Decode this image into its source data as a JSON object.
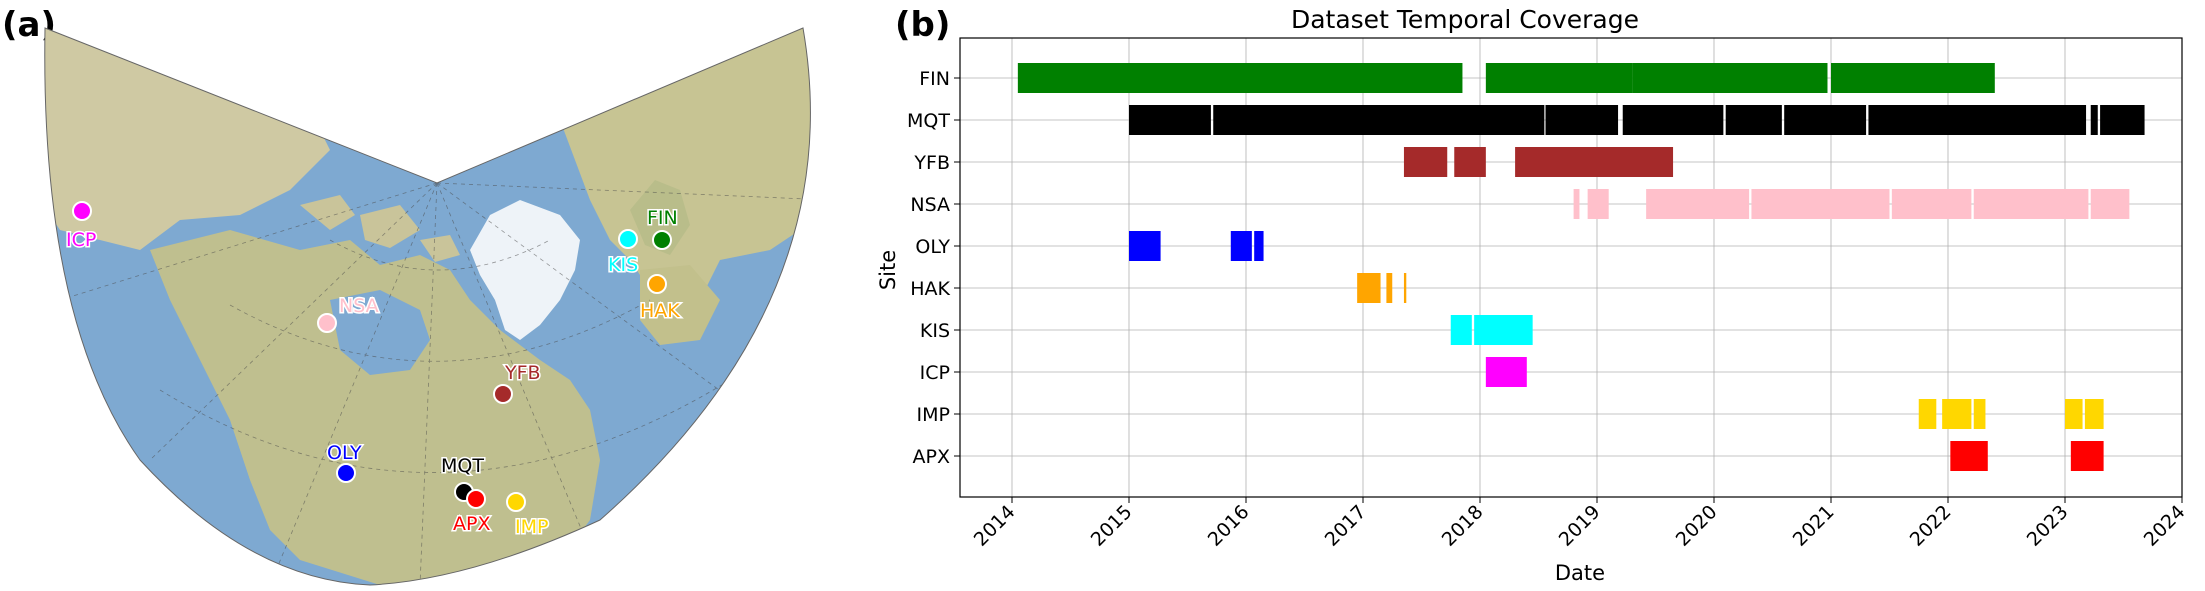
{
  "panel_a_label": "(a)",
  "panel_b_label": "(b)",
  "map": {
    "ocean_color": "#7ea9d1",
    "land_color": "#c9c49a",
    "ice_color": "#eef3f8",
    "sites": [
      {
        "name": "ICP",
        "color": "#ff00ff"
      },
      {
        "name": "NSA",
        "color": "#ffc0cb"
      },
      {
        "name": "YFB",
        "color": "#a52a2a"
      },
      {
        "name": "FIN",
        "color": "#008000"
      },
      {
        "name": "KIS",
        "color": "#00ffff"
      },
      {
        "name": "HAK",
        "color": "#ffa500"
      },
      {
        "name": "OLY",
        "color": "#0000ff"
      },
      {
        "name": "MQT",
        "color": "#000000"
      },
      {
        "name": "APX",
        "color": "#ff0000"
      },
      {
        "name": "IMP",
        "color": "#ffd700"
      }
    ]
  },
  "chart_data": {
    "type": "bar",
    "subtype": "gantt",
    "title": "Dataset Temporal Coverage",
    "xlabel": "Date",
    "ylabel": "Site",
    "xlim": [
      2013.6,
      2024.0
    ],
    "xticks": [
      "2014",
      "2015",
      "2016",
      "2017",
      "2018",
      "2019",
      "2020",
      "2021",
      "2022",
      "2023",
      "2024"
    ],
    "xtick_values": [
      2014,
      2015,
      2016,
      2017,
      2018,
      2019,
      2020,
      2021,
      2022,
      2023,
      2024
    ],
    "grid": true,
    "sites": [
      {
        "name": "FIN",
        "color": "#008000",
        "intervals": [
          [
            2014.05,
            2017.5
          ],
          [
            2017.5,
            2017.85
          ],
          [
            2018.05,
            2019.3
          ],
          [
            2019.3,
            2020.97
          ],
          [
            2021.0,
            2022.4
          ]
        ]
      },
      {
        "name": "MQT",
        "color": "#000000",
        "intervals": [
          [
            2015.0,
            2015.7
          ],
          [
            2015.72,
            2018.55
          ],
          [
            2018.56,
            2019.18
          ],
          [
            2019.22,
            2020.08
          ],
          [
            2020.1,
            2020.58
          ],
          [
            2020.6,
            2021.3
          ],
          [
            2021.32,
            2023.18
          ],
          [
            2023.22,
            2023.28
          ],
          [
            2023.3,
            2023.68
          ]
        ]
      },
      {
        "name": "YFB",
        "color": "#a52a2a",
        "intervals": [
          [
            2017.35,
            2017.72
          ],
          [
            2017.78,
            2018.05
          ],
          [
            2018.3,
            2019.65
          ]
        ]
      },
      {
        "name": "NSA",
        "color": "#ffc0cb",
        "intervals": [
          [
            2018.8,
            2018.85
          ],
          [
            2018.92,
            2019.1
          ],
          [
            2019.42,
            2020.3
          ],
          [
            2020.32,
            2021.5
          ],
          [
            2021.52,
            2022.2
          ],
          [
            2022.22,
            2023.2
          ],
          [
            2023.22,
            2023.55
          ]
        ]
      },
      {
        "name": "OLY",
        "color": "#0000ff",
        "intervals": [
          [
            2015.0,
            2015.27
          ],
          [
            2015.87,
            2016.05
          ],
          [
            2016.07,
            2016.15
          ]
        ]
      },
      {
        "name": "HAK",
        "color": "#ffa500",
        "intervals": [
          [
            2016.95,
            2017.15
          ],
          [
            2017.2,
            2017.25
          ],
          [
            2017.35,
            2017.37
          ]
        ]
      },
      {
        "name": "KIS",
        "color": "#00ffff",
        "intervals": [
          [
            2017.75,
            2017.93
          ],
          [
            2017.95,
            2018.45
          ]
        ]
      },
      {
        "name": "ICP",
        "color": "#ff00ff",
        "intervals": [
          [
            2018.05,
            2018.4
          ]
        ]
      },
      {
        "name": "IMP",
        "color": "#ffd700",
        "intervals": [
          [
            2021.75,
            2021.9
          ],
          [
            2021.95,
            2022.2
          ],
          [
            2022.22,
            2022.32
          ],
          [
            2023.0,
            2023.15
          ],
          [
            2023.17,
            2023.33
          ]
        ]
      },
      {
        "name": "APX",
        "color": "#ff0000",
        "intervals": [
          [
            2022.02,
            2022.34
          ],
          [
            2023.05,
            2023.33
          ]
        ]
      }
    ]
  }
}
